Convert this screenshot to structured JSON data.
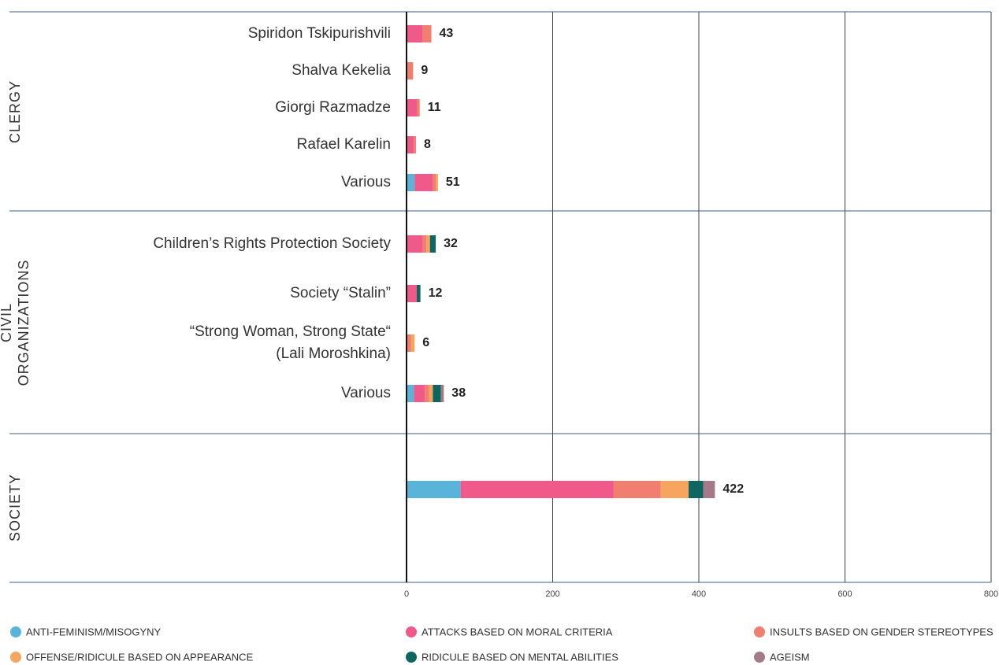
{
  "chart_data": {
    "type": "stacked-bar-horizontal",
    "groups": [
      {
        "name": [
          "CLERGY"
        ],
        "categories": [
          [
            "Spiridon Tskipurishvili"
          ],
          [
            "Shalva Kekelia"
          ],
          [
            "Giorgi Razmadze"
          ],
          [
            "Rafael Karelin"
          ],
          [
            "Various"
          ]
        ],
        "totals": [
          43,
          9,
          11,
          8,
          51
        ]
      },
      {
        "name": [
          "CIVIL",
          "ORGANIZATIONS"
        ],
        "categories": [
          [
            "Children’s Rights Protection Society"
          ],
          [
            "Society “Stalin”"
          ],
          [
            "“Strong Woman, Strong State“",
            "(Lali Moroshkina)"
          ],
          [
            "Various"
          ]
        ],
        "totals": [
          32,
          12,
          6,
          38
        ]
      },
      {
        "name": [
          "SOCIETY"
        ],
        "categories": [
          null
        ],
        "totals": [
          422
        ]
      }
    ],
    "series": [
      {
        "name": "ANTI-FEMINISM/MISOGYNY",
        "color": "#5ab4d9",
        "values": [
          [
            0,
            0,
            0,
            0,
            11
          ],
          [
            0,
            0,
            0,
            10
          ],
          [
            74
          ]
        ]
      },
      {
        "name": "ATTACKS BASED ON MORAL CRITERIA",
        "color": "#ef5a8a",
        "values": [
          [
            22,
            0,
            14,
            10,
            25
          ],
          [
            22,
            14,
            0,
            15
          ],
          [
            209
          ]
        ]
      },
      {
        "name": "INSULTS BASED ON GENDER STEREOTYPES",
        "color": "#f07f6f",
        "values": [
          [
            12,
            9,
            4,
            3,
            4
          ],
          [
            5,
            0,
            6,
            6
          ],
          [
            65
          ]
        ]
      },
      {
        "name": "OFFENSE/RIDICULE BASED ON APPEARANCE",
        "color": "#f5a55f",
        "values": [
          [
            0,
            0,
            0,
            0,
            3
          ],
          [
            5,
            0,
            5,
            5
          ],
          [
            38
          ]
        ]
      },
      {
        "name": "RIDICULE BASED ON MENTAL ABILITIES",
        "color": "#0f6560",
        "values": [
          [
            0,
            0,
            0,
            0,
            0
          ],
          [
            8,
            5,
            0,
            11
          ],
          [
            20
          ]
        ]
      },
      {
        "name": "AGEISM",
        "color": "#a57a88",
        "values": [
          [
            0,
            0,
            0,
            0,
            0
          ],
          [
            0,
            0,
            0,
            4
          ],
          [
            16
          ]
        ]
      }
    ],
    "xlim": [
      0,
      800
    ],
    "xticks": [
      0,
      200,
      400,
      600,
      800
    ],
    "grid": true
  }
}
